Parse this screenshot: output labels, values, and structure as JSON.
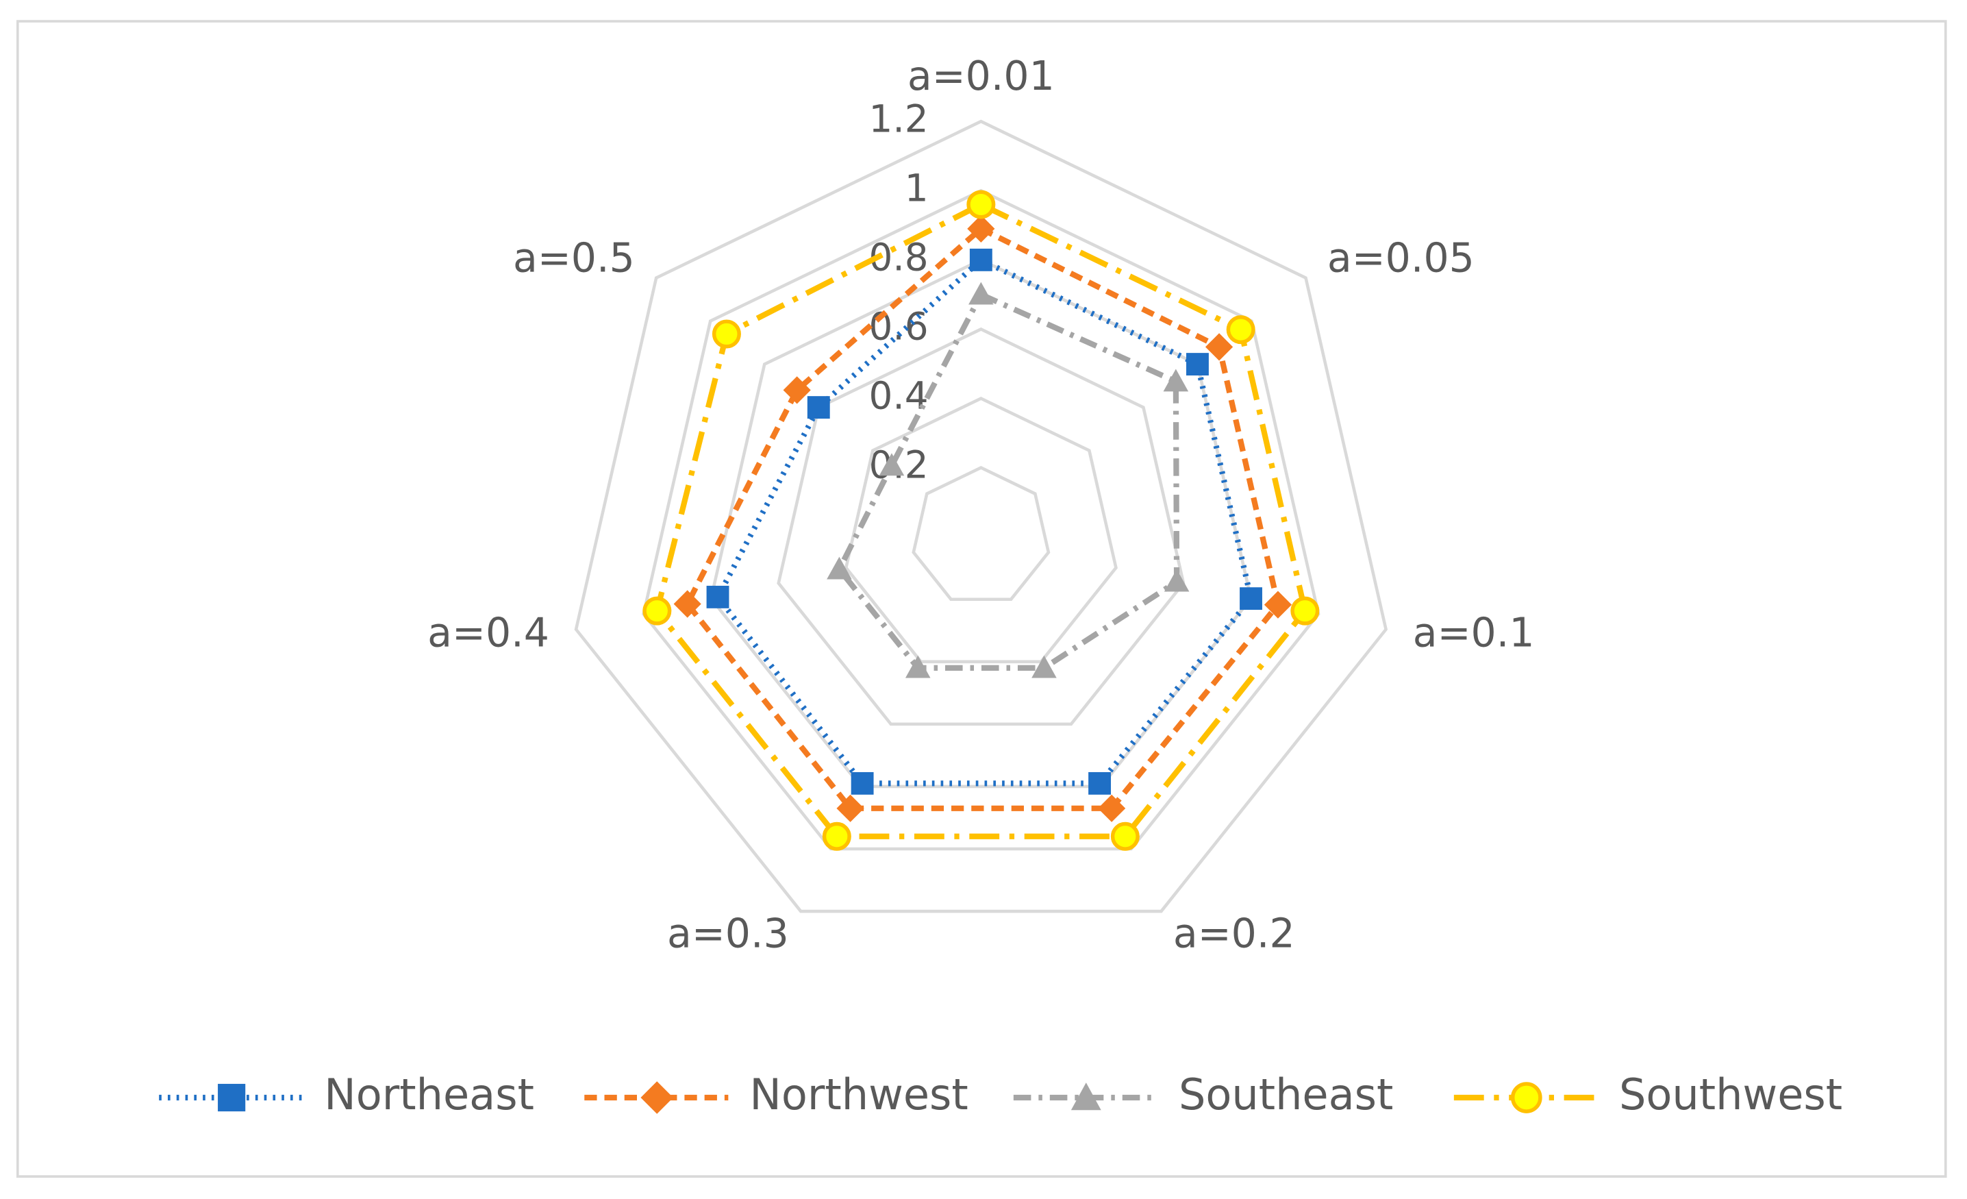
{
  "chart_data": {
    "type": "radar",
    "categories": [
      "a=0.01",
      "a=0.05",
      "a=0.1",
      "a=0.2",
      "a=0.3",
      "a=0.4",
      "a=0.5"
    ],
    "ylim": [
      0,
      1.2
    ],
    "yticks": [
      0.2,
      0.4,
      0.6,
      0.8,
      1,
      1.2
    ],
    "grid": true,
    "legend": "bottom",
    "series": [
      {
        "name": "Northeast",
        "color": "#1f6fc5",
        "marker": "square",
        "line_style": "dotted",
        "values": [
          0.8,
          0.8,
          0.8,
          0.79,
          0.79,
          0.78,
          0.6
        ]
      },
      {
        "name": "Northwest",
        "color": "#f47b20",
        "marker": "diamond",
        "line_style": "dashed",
        "values": [
          0.89,
          0.88,
          0.88,
          0.87,
          0.87,
          0.87,
          0.68
        ]
      },
      {
        "name": "Southeast",
        "color": "#a5a5a5",
        "marker": "triangle",
        "line_style": "dash-dot",
        "values": [
          0.7,
          0.72,
          0.58,
          0.42,
          0.42,
          0.42,
          0.33
        ]
      },
      {
        "name": "Southwest",
        "color": "#ffc000",
        "marker": "circle",
        "line_style": "long-dash-dot",
        "values": [
          0.96,
          0.96,
          0.96,
          0.96,
          0.96,
          0.96,
          0.94
        ]
      }
    ]
  }
}
